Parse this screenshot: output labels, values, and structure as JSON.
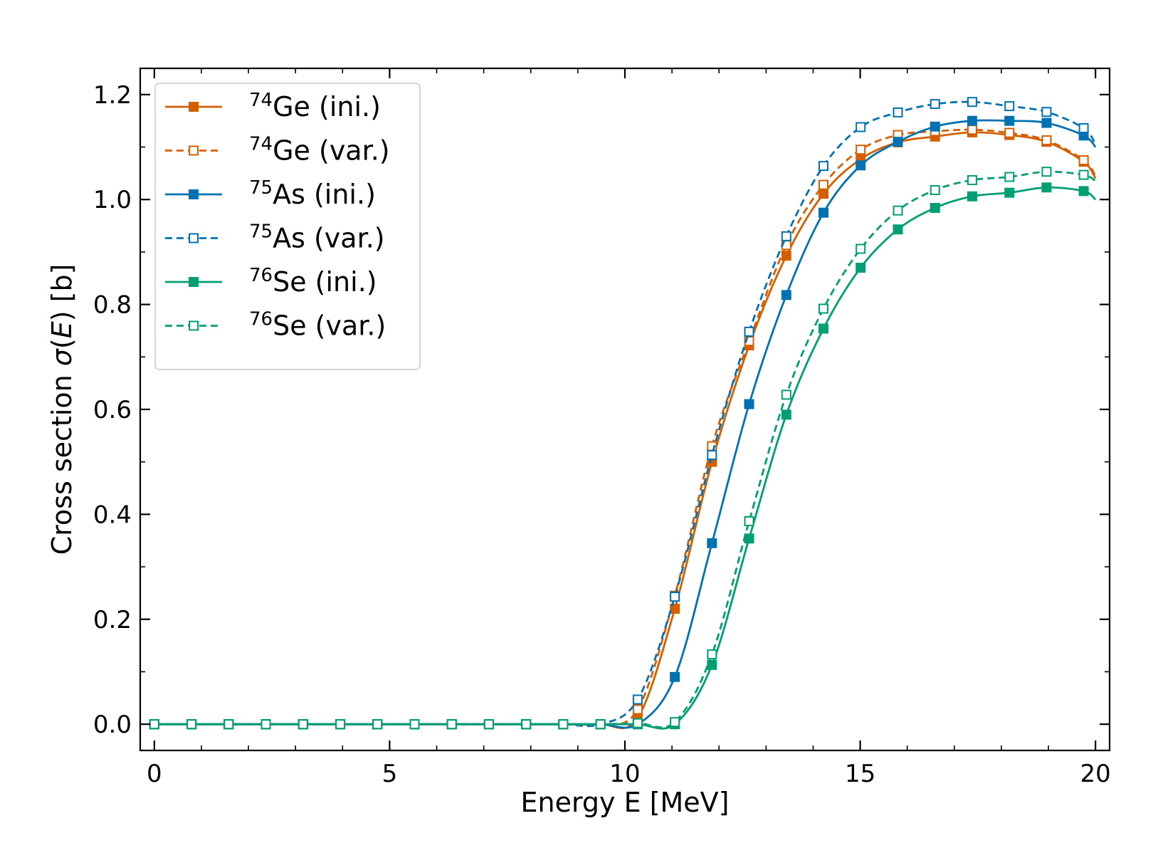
{
  "chart_data": {
    "type": "line",
    "title": "",
    "xlabel": "Energy E [MeV]",
    "ylabel_prefix": "Cross section ",
    "ylabel_sigma": "σ",
    "ylabel_open": "(",
    "ylabel_var": "E",
    "ylabel_suffix": ") [b]",
    "xlim": [
      -0.3,
      20.3
    ],
    "ylim": [
      -0.05,
      1.25
    ],
    "xticks": [
      0,
      5,
      10,
      15,
      20
    ],
    "xtick_labels": [
      "0",
      "5",
      "10",
      "15",
      "20"
    ],
    "yticks": [
      0.0,
      0.2,
      0.4,
      0.6,
      0.8,
      1.0,
      1.2
    ],
    "ytick_labels": [
      "0.0",
      "0.2",
      "0.4",
      "0.6",
      "0.8",
      "1.0",
      "1.2"
    ],
    "legend_position": "upper-left",
    "marker_x": [
      0,
      0.79,
      1.58,
      2.37,
      3.16,
      3.95,
      4.74,
      5.53,
      6.32,
      7.11,
      7.9,
      8.69,
      9.48,
      10.27,
      11.06,
      11.85,
      12.64,
      13.43,
      14.22,
      15.01,
      15.8,
      16.59,
      17.38,
      18.17,
      18.96,
      19.75
    ],
    "series": [
      {
        "name": "Ge (ini.)",
        "mass": "74",
        "label_text": "Ge (ini.)",
        "color": "#d55e00",
        "dashed": false,
        "filled": true,
        "values": [
          0,
          0,
          0,
          0,
          0,
          0,
          0,
          0,
          0,
          0,
          0,
          0,
          0,
          0.012,
          0.22,
          0.5,
          0.722,
          0.893,
          1.011,
          1.077,
          1.109,
          1.12,
          1.128,
          1.123,
          1.11,
          1.072
        ],
        "end_value": 1.04
      },
      {
        "name": "Ge (var.)",
        "mass": "74",
        "label_text": "Ge (var.)",
        "color": "#d55e00",
        "dashed": true,
        "filled": false,
        "values": [
          0,
          0,
          0,
          0,
          0,
          0,
          0,
          0,
          0,
          0,
          0,
          0,
          0,
          0.028,
          0.245,
          0.53,
          0.73,
          0.913,
          1.028,
          1.095,
          1.123,
          1.13,
          1.133,
          1.127,
          1.113,
          1.075
        ],
        "end_value": 1.045
      },
      {
        "name": "As (ini.)",
        "mass": "75",
        "label_text": "As (ini.)",
        "color": "#0072b2",
        "dashed": false,
        "filled": true,
        "values": [
          0,
          0,
          0,
          0,
          0,
          0,
          0,
          0,
          0,
          0,
          0,
          0,
          0,
          0,
          0.09,
          0.345,
          0.61,
          0.818,
          0.975,
          1.065,
          1.11,
          1.139,
          1.15,
          1.15,
          1.146,
          1.122
        ],
        "end_value": 1.1
      },
      {
        "name": "As (var.)",
        "mass": "75",
        "label_text": "As (var.)",
        "color": "#0072b2",
        "dashed": true,
        "filled": false,
        "values": [
          0,
          0,
          0,
          0,
          0,
          0,
          0,
          0,
          0,
          0,
          0,
          0,
          0,
          0.047,
          0.243,
          0.513,
          0.748,
          0.93,
          1.064,
          1.138,
          1.166,
          1.182,
          1.186,
          1.178,
          1.167,
          1.136
        ],
        "end_value": 1.105
      },
      {
        "name": "Se (ini.)",
        "mass": "76",
        "label_text": "Se (ini.)",
        "color": "#009e73",
        "dashed": false,
        "filled": true,
        "values": [
          0,
          0,
          0,
          0,
          0,
          0,
          0,
          0,
          0,
          0,
          0,
          0,
          0,
          0,
          0,
          0.113,
          0.354,
          0.59,
          0.754,
          0.87,
          0.943,
          0.984,
          1.006,
          1.013,
          1.023,
          1.016
        ],
        "end_value": 1.0
      },
      {
        "name": "Se (var.)",
        "mass": "76",
        "label_text": "Se (var.)",
        "color": "#009e73",
        "dashed": true,
        "filled": false,
        "values": [
          0,
          0,
          0,
          0,
          0,
          0,
          0,
          0,
          0,
          0,
          0,
          0,
          0,
          0.002,
          0.004,
          0.133,
          0.387,
          0.628,
          0.792,
          0.906,
          0.979,
          1.018,
          1.037,
          1.043,
          1.053,
          1.047
        ],
        "end_value": 1.035
      }
    ]
  }
}
